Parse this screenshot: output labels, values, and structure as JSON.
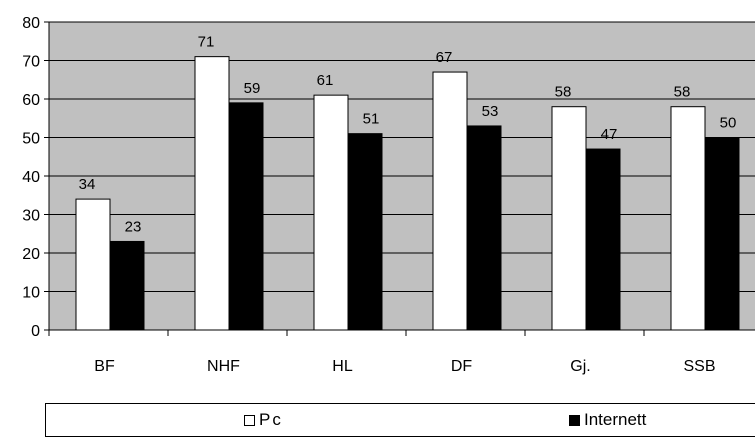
{
  "chart_data": {
    "type": "bar",
    "categories": [
      "BF",
      "NHF",
      "HL",
      "DF",
      "Gj.",
      "SSB"
    ],
    "series": [
      {
        "name": "Pc",
        "values": [
          34,
          71,
          61,
          67,
          58,
          58
        ],
        "color": "#ffffff"
      },
      {
        "name": "Internett",
        "values": [
          23,
          59,
          51,
          53,
          47,
          50
        ],
        "color": "#000000"
      }
    ],
    "ylim": [
      0,
      80
    ],
    "yticks": [
      0,
      10,
      20,
      30,
      40,
      50,
      60,
      70,
      80
    ],
    "plot_background": "#c0c0c0",
    "grid": true,
    "legend_position": "bottom",
    "data_labels": true
  }
}
